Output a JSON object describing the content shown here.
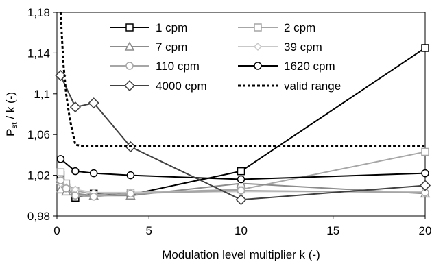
{
  "chart_data": {
    "type": "line",
    "xlabel": "Modulation level multiplier k (-)",
    "ylabel_main": "P",
    "ylabel_sub": "st",
    "ylabel_rest": " / k (-)",
    "xlim": [
      0,
      20
    ],
    "ylim": [
      0.98,
      1.18
    ],
    "x_ticks": [
      {
        "value": 0,
        "label": "0"
      },
      {
        "value": 5,
        "label": "5"
      },
      {
        "value": 10,
        "label": "10"
      },
      {
        "value": 15,
        "label": "15"
      },
      {
        "value": 20,
        "label": "20"
      }
    ],
    "y_ticks": [
      {
        "value": 0.98,
        "label": "0,98"
      },
      {
        "value": 1.02,
        "label": "1,02"
      },
      {
        "value": 1.06,
        "label": "1,06"
      },
      {
        "value": 1.1,
        "label": "1,1"
      },
      {
        "value": 1.14,
        "label": "1,14"
      },
      {
        "value": 1.18,
        "label": "1,18"
      }
    ],
    "grid": false,
    "legend_position": "top",
    "series": [
      {
        "name": "1 cpm",
        "color": "#000000",
        "marker": "square",
        "dash": "none",
        "x": [
          0.2,
          0.5,
          1,
          2,
          4,
          10,
          20
        ],
        "y": [
          1.02,
          1.008,
          0.998,
          1.002,
          1.001,
          1.024,
          1.145
        ]
      },
      {
        "name": "2 cpm",
        "color": "#a6a6a6",
        "marker": "square",
        "dash": "none",
        "x": [
          0.2,
          0.5,
          1,
          2,
          4,
          10,
          20
        ],
        "y": [
          1.023,
          1.012,
          1.005,
          1.001,
          1.003,
          1.006,
          1.043
        ]
      },
      {
        "name": "7 cpm",
        "color": "#8c8c8c",
        "marker": "triangle",
        "dash": "none",
        "x": [
          0.2,
          0.5,
          1,
          2,
          4,
          10,
          20
        ],
        "y": [
          1.006,
          1.004,
          1.002,
          1.0,
          1.0,
          1.012,
          1.002
        ]
      },
      {
        "name": "39 cpm",
        "color": "#c8c8c8",
        "marker": "diamond-small",
        "dash": "none",
        "x": [
          0.2,
          0.5,
          1,
          2,
          4,
          10,
          20
        ],
        "y": [
          1.012,
          1.008,
          1.006,
          1.003,
          1.003,
          1.004,
          1.004
        ]
      },
      {
        "name": "110 cpm",
        "color": "#a6a6a6",
        "marker": "circle",
        "dash": "none",
        "x": [
          0.2,
          0.5,
          1,
          2,
          4,
          10,
          20
        ],
        "y": [
          1.015,
          1.007,
          1.0,
          0.999,
          1.002,
          1.005,
          1.003
        ]
      },
      {
        "name": "1620 cpm",
        "color": "#000000",
        "marker": "circle",
        "dash": "none",
        "x": [
          0.2,
          1,
          2,
          4,
          10,
          20
        ],
        "y": [
          1.036,
          1.024,
          1.022,
          1.02,
          1.016,
          1.022
        ]
      },
      {
        "name": "4000 cpm",
        "color": "#404040",
        "marker": "diamond",
        "dash": "none",
        "x": [
          0.2,
          1,
          2,
          4,
          10,
          20
        ],
        "y": [
          1.118,
          1.087,
          1.091,
          1.048,
          0.996,
          1.01
        ]
      },
      {
        "name": "valid range",
        "color": "#000000",
        "marker": "none",
        "dash": "dotted",
        "x": [
          0.2,
          0.35,
          0.5,
          0.7,
          1,
          1.3,
          20
        ],
        "y": [
          1.18,
          1.13,
          1.1,
          1.075,
          1.05,
          1.049,
          1.049
        ]
      }
    ]
  }
}
